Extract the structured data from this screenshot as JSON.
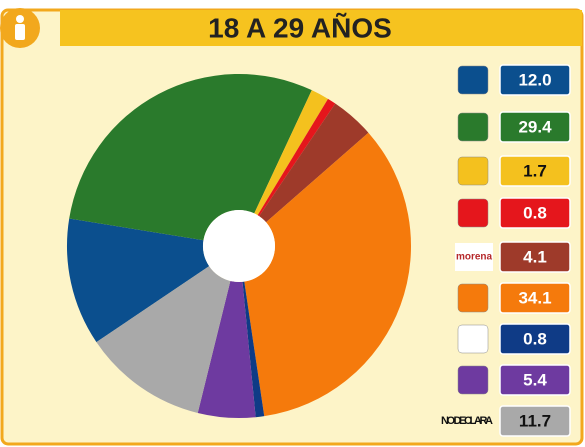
{
  "chart_data": {
    "type": "donut",
    "title": "18 A 29 AÑOS",
    "categories": [
      null,
      null,
      null,
      null,
      "morena",
      null,
      null,
      null,
      "NO DECLARA"
    ],
    "values": [
      12.0,
      29.4,
      1.7,
      0.8,
      4.1,
      34.1,
      0.8,
      5.4,
      11.7
    ],
    "value_labels": [
      "12.0",
      "29.4",
      "1.7",
      "0.8",
      "4.1",
      "34.1",
      "0.8",
      "5.4",
      "11.7"
    ],
    "colors": [
      "#0b4f8e",
      "#2a7a2c",
      "#f4c11e",
      "#e5161c",
      "#9e3a2a",
      "#f57a0c",
      "#0f3b86",
      "#6e3aa0",
      "#a9a9a9"
    ]
  }
}
